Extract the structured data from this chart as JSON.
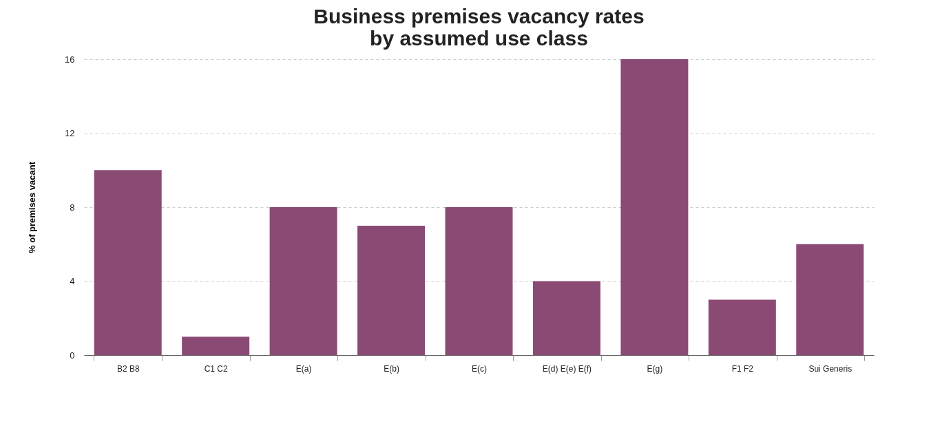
{
  "chart_data": {
    "type": "bar",
    "title": "Business premises vacancy rates\nby assumed use class",
    "ylabel": "% of premises vacant",
    "categories": [
      "B2 B8",
      "C1 C2",
      "E(a)",
      "E(b)",
      "E(c)",
      "E(d) E(e) E(f)",
      "E(g)",
      "F1 F2",
      "Sui Generis"
    ],
    "values": [
      10,
      1,
      8,
      7,
      8,
      4,
      16,
      3,
      6
    ],
    "color": "#8b4a74",
    "ylim": [
      0,
      16
    ],
    "yticks": [
      0,
      4,
      8,
      12,
      16
    ],
    "grid": "y",
    "legend": false
  }
}
